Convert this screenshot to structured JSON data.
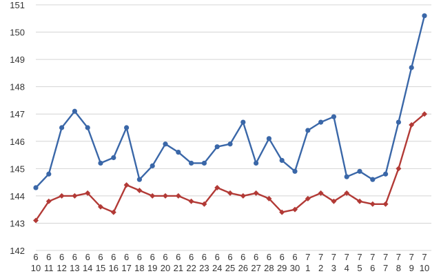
{
  "chart_data": {
    "type": "line",
    "title": "",
    "xlabel": "",
    "ylabel": "",
    "ylim": [
      142,
      151
    ],
    "yticks": [
      "142",
      "143",
      "144",
      "145",
      "146",
      "147",
      "148",
      "149",
      "150",
      "151"
    ],
    "grid": "horizontal",
    "legend": "none",
    "categories": [
      {
        "month": "6",
        "day": "10"
      },
      {
        "month": "6",
        "day": "11"
      },
      {
        "month": "6",
        "day": "12"
      },
      {
        "month": "6",
        "day": "13"
      },
      {
        "month": "6",
        "day": "14"
      },
      {
        "month": "6",
        "day": "15"
      },
      {
        "month": "6",
        "day": "16"
      },
      {
        "month": "6",
        "day": "17"
      },
      {
        "month": "6",
        "day": "18"
      },
      {
        "month": "6",
        "day": "19"
      },
      {
        "month": "6",
        "day": "20"
      },
      {
        "month": "6",
        "day": "21"
      },
      {
        "month": "6",
        "day": "22"
      },
      {
        "month": "6",
        "day": "23"
      },
      {
        "month": "6",
        "day": "24"
      },
      {
        "month": "6",
        "day": "25"
      },
      {
        "month": "6",
        "day": "26"
      },
      {
        "month": "6",
        "day": "27"
      },
      {
        "month": "6",
        "day": "28"
      },
      {
        "month": "6",
        "day": "29"
      },
      {
        "month": "6",
        "day": "30"
      },
      {
        "month": "7",
        "day": "1"
      },
      {
        "month": "7",
        "day": "2"
      },
      {
        "month": "7",
        "day": "3"
      },
      {
        "month": "7",
        "day": "4"
      },
      {
        "month": "7",
        "day": "5"
      },
      {
        "month": "7",
        "day": "6"
      },
      {
        "month": "7",
        "day": "7"
      },
      {
        "month": "7",
        "day": "8"
      },
      {
        "month": "7",
        "day": "9"
      },
      {
        "month": "7",
        "day": "10"
      }
    ],
    "series": [
      {
        "color": "#3a67a8",
        "marker": "circle",
        "values": [
          144.3,
          144.8,
          146.5,
          147.1,
          146.5,
          145.2,
          145.4,
          146.5,
          144.6,
          145.1,
          145.9,
          145.6,
          145.2,
          145.2,
          145.8,
          145.9,
          146.7,
          145.2,
          146.1,
          145.3,
          144.9,
          146.4,
          146.7,
          146.9,
          144.7,
          144.9,
          144.6,
          144.8,
          146.7,
          148.7,
          150.6
        ]
      },
      {
        "color": "#b23a36",
        "marker": "diamond",
        "values": [
          143.1,
          143.8,
          144.0,
          144.0,
          144.1,
          143.6,
          143.4,
          144.4,
          144.2,
          144.0,
          144.0,
          144.0,
          143.8,
          143.7,
          144.3,
          144.1,
          144.0,
          144.1,
          143.9,
          143.4,
          143.5,
          143.9,
          144.1,
          143.8,
          144.1,
          143.8,
          143.7,
          143.7,
          145.0,
          146.6,
          147.0
        ]
      }
    ]
  }
}
